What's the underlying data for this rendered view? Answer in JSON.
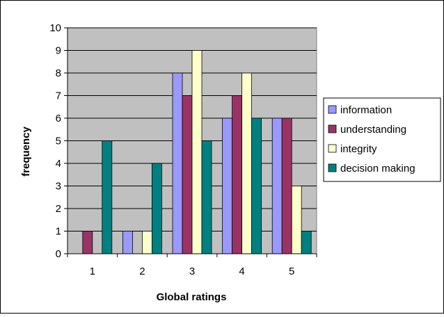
{
  "chart_data": {
    "type": "bar",
    "title": "",
    "xlabel": "Global ratings",
    "ylabel": "frequency",
    "categories": [
      "1",
      "2",
      "3",
      "4",
      "5"
    ],
    "ylim": [
      0,
      10
    ],
    "yticks": [
      0,
      1,
      2,
      3,
      4,
      5,
      6,
      7,
      8,
      9,
      10
    ],
    "grid": true,
    "legend_position": "right",
    "series": [
      {
        "name": "information",
        "color": "#9999ff",
        "values": [
          0,
          1,
          8,
          6,
          6
        ]
      },
      {
        "name": "understanding",
        "color": "#993366",
        "values": [
          1,
          0,
          7,
          7,
          6
        ]
      },
      {
        "name": "integrity",
        "color": "#ffffcc",
        "values": [
          0,
          1,
          9,
          8,
          3
        ]
      },
      {
        "name": "decision making",
        "color": "#008080",
        "values": [
          5,
          4,
          5,
          6,
          1
        ]
      }
    ],
    "plot_background": "#c0c0c0"
  }
}
